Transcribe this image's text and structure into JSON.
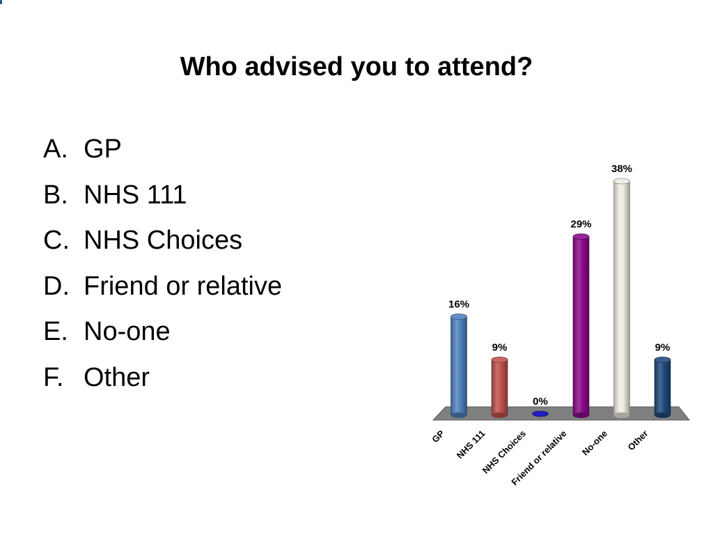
{
  "slide": {
    "title": "Who advised you to attend?"
  },
  "options": [
    {
      "letter": "A.",
      "text": "GP"
    },
    {
      "letter": "B.",
      "text": "NHS 111"
    },
    {
      "letter": "C.",
      "text": "NHS Choices"
    },
    {
      "letter": "D.",
      "text": "Friend or relative"
    },
    {
      "letter": "E.",
      "text": "No-one"
    },
    {
      "letter": "F.",
      "text": "Other"
    }
  ],
  "chart_data": {
    "type": "bar",
    "title": "",
    "xlabel": "",
    "ylabel": "",
    "categories": [
      "GP",
      "NHS 111",
      "NHS Choices",
      "Friend or relative",
      "No-one",
      "Other"
    ],
    "values": [
      16,
      9,
      0,
      29,
      38,
      9
    ],
    "value_labels": [
      "16%",
      "9%",
      "0%",
      "29%",
      "38%",
      "9%"
    ],
    "unit": "%",
    "ylim": [
      0,
      38
    ],
    "grid": false,
    "legend": "none",
    "colors": [
      "#4f81bd",
      "#c0504d",
      "#1f1fbf",
      "#8b0a8b",
      "#eeece1",
      "#1f497d"
    ],
    "floor_color": "#808080"
  }
}
